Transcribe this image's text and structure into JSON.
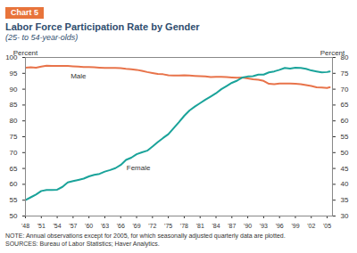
{
  "chart_data": {
    "type": "line",
    "chart_label": "Chart 5",
    "title": "Labor Force Participation Rate by Gender",
    "subtitle": "(25- to 54-year-olds)",
    "ylabel": "Percent",
    "y2label": "Percent",
    "note": "NOTE: Annual observations except for 2005, for which seasonally adjusted quarterly data are plotted.",
    "source": "SOURCES: Bureau of Labor Statistics; Haver Analytics.",
    "x": [
      1948,
      1949,
      1950,
      1951,
      1952,
      1953,
      1954,
      1955,
      1956,
      1957,
      1958,
      1959,
      1960,
      1961,
      1962,
      1963,
      1964,
      1965,
      1966,
      1967,
      1968,
      1969,
      1970,
      1971,
      1972,
      1973,
      1974,
      1975,
      1976,
      1977,
      1978,
      1979,
      1980,
      1981,
      1982,
      1983,
      1984,
      1985,
      1986,
      1987,
      1988,
      1989,
      1990,
      1991,
      1992,
      1993,
      1994,
      1995,
      1996,
      1997,
      1998,
      1999,
      2000,
      2001,
      2002,
      2003,
      2004,
      2005,
      2005.25,
      2005.5
    ],
    "series": [
      {
        "name": "Male",
        "color": "#e8734a",
        "axis": "y",
        "values": [
          96.8,
          96.9,
          96.8,
          97.1,
          97.4,
          97.3,
          97.3,
          97.3,
          97.3,
          97.2,
          97.1,
          97.0,
          97.0,
          96.9,
          96.8,
          96.7,
          96.7,
          96.7,
          96.6,
          96.4,
          96.3,
          96.1,
          95.8,
          95.4,
          95.1,
          94.8,
          94.7,
          94.4,
          94.3,
          94.3,
          94.4,
          94.3,
          94.2,
          94.1,
          94.0,
          93.8,
          93.9,
          93.9,
          93.8,
          93.7,
          93.6,
          93.7,
          93.4,
          93.1,
          93.0,
          92.6,
          91.7,
          91.6,
          91.8,
          91.8,
          91.8,
          91.7,
          91.6,
          91.3,
          91.0,
          90.6,
          90.5,
          90.4,
          90.5,
          90.6
        ]
      },
      {
        "name": "Female",
        "color": "#1aa39a",
        "axis": "y2",
        "values": [
          35.0,
          35.9,
          36.8,
          37.9,
          38.2,
          38.2,
          38.3,
          39.2,
          40.6,
          41.0,
          41.4,
          41.8,
          42.5,
          43.0,
          43.3,
          44.0,
          44.5,
          45.1,
          46.1,
          47.7,
          48.4,
          49.5,
          50.1,
          50.6,
          51.9,
          53.3,
          54.6,
          55.8,
          57.7,
          59.6,
          61.6,
          63.3,
          64.5,
          65.6,
          66.7,
          67.7,
          68.7,
          70.0,
          71.0,
          72.0,
          72.7,
          73.7,
          74.0,
          74.1,
          74.6,
          74.6,
          75.3,
          75.6,
          76.1,
          76.7,
          76.5,
          76.8,
          76.7,
          76.4,
          75.9,
          75.6,
          75.3,
          75.4,
          75.5,
          75.6
        ]
      }
    ],
    "xlim": [
      1948,
      2006
    ],
    "xticks": [
      {
        "value": 1948,
        "label": "'48"
      },
      {
        "value": 1951,
        "label": "'51"
      },
      {
        "value": 1954,
        "label": "'54"
      },
      {
        "value": 1957,
        "label": "'57"
      },
      {
        "value": 1960,
        "label": "'60"
      },
      {
        "value": 1963,
        "label": "'63"
      },
      {
        "value": 1966,
        "label": "'66"
      },
      {
        "value": 1969,
        "label": "'69"
      },
      {
        "value": 1972,
        "label": "'72"
      },
      {
        "value": 1975,
        "label": "'75"
      },
      {
        "value": 1978,
        "label": "'78"
      },
      {
        "value": 1981,
        "label": "'81"
      },
      {
        "value": 1984,
        "label": "'84"
      },
      {
        "value": 1987,
        "label": "'87"
      },
      {
        "value": 1990,
        "label": "'90"
      },
      {
        "value": 1993,
        "label": "'93"
      },
      {
        "value": 1996,
        "label": "'96"
      },
      {
        "value": 1999,
        "label": "'99"
      },
      {
        "value": 2002,
        "label": "'02"
      },
      {
        "value": 2005,
        "label": "'05"
      }
    ],
    "ylim": [
      50,
      100
    ],
    "yticks": [
      50,
      55,
      60,
      65,
      70,
      75,
      80,
      85,
      90,
      95,
      100
    ],
    "y2lim": [
      30,
      80
    ],
    "y2ticks": [
      30,
      35,
      40,
      45,
      50,
      55,
      60,
      65,
      70,
      75,
      80
    ],
    "grid": false
  }
}
